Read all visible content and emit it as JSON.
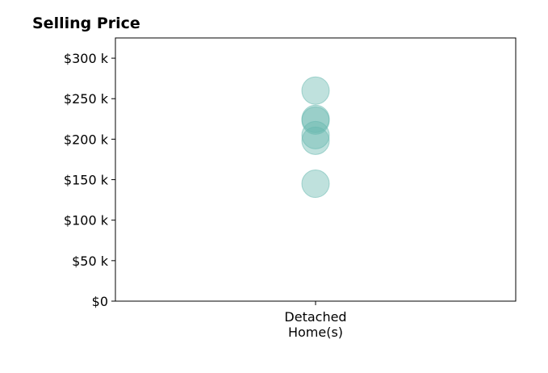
{
  "chart_data": {
    "type": "scatter",
    "title": "Selling Price",
    "xlabel": "",
    "ylabel": "",
    "categories": [
      "Detached\nHome(s)"
    ],
    "ylim": [
      0,
      325000
    ],
    "yticks": [
      0,
      50000,
      100000,
      150000,
      200000,
      250000,
      300000
    ],
    "ytick_labels": [
      "$0",
      "$50 k",
      "$100 k",
      "$150 k",
      "$200 k",
      "$250 k",
      "$300 k"
    ],
    "series": [
      {
        "category": "Detached\nHome(s)",
        "values": [
          260000,
          225000,
          223000,
          205000,
          198000,
          145000
        ]
      }
    ],
    "marker_color": "#66b8ae",
    "marker_opacity": 0.42,
    "grid": false,
    "legend": "none"
  }
}
